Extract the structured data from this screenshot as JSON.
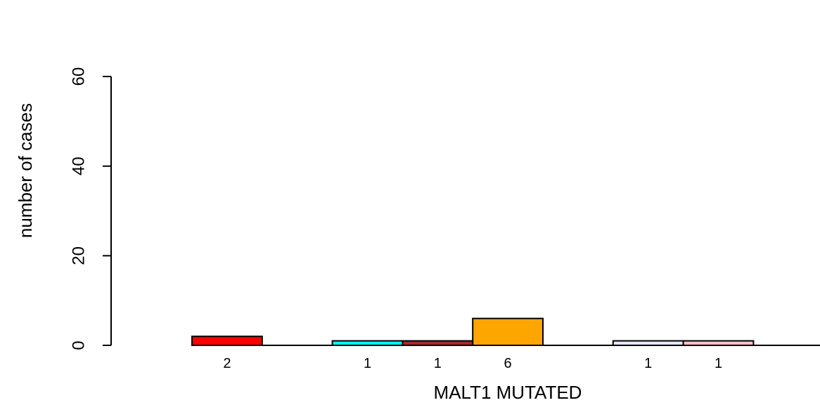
{
  "chart_data": {
    "type": "bar",
    "title": "",
    "xlabel": "MALT1 MUTATED",
    "ylabel": "number of cases",
    "ylim": [
      0,
      60
    ],
    "yticks": [
      0,
      20,
      40,
      60
    ],
    "grid": false,
    "legend": "none",
    "bars": [
      {
        "slot": 0,
        "value": 2,
        "label": "2",
        "color": "#ff0000"
      },
      {
        "slot": 2,
        "value": 1,
        "label": "1",
        "color": "#00ffff"
      },
      {
        "slot": 3,
        "value": 1,
        "label": "1",
        "color": "#a52a2a"
      },
      {
        "slot": 4,
        "value": 6,
        "label": "6",
        "color": "#ffa500"
      },
      {
        "slot": 6,
        "value": 1,
        "label": "1",
        "color": "#e6e6fa"
      },
      {
        "slot": 7,
        "value": 1,
        "label": "1",
        "color": "#ffc0cb"
      }
    ]
  }
}
